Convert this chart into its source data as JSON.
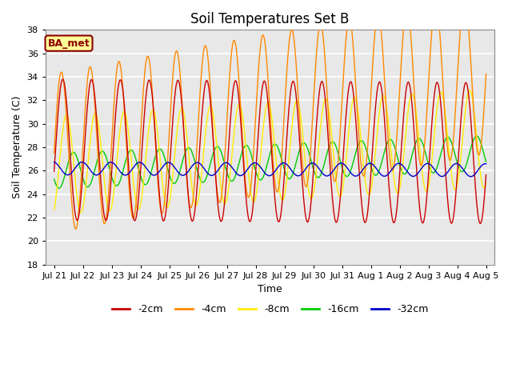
{
  "title": "Soil Temperatures Set B",
  "xlabel": "Time",
  "ylabel": "Soil Temperature (C)",
  "ylim": [
    18,
    38
  ],
  "yticks": [
    18,
    20,
    22,
    24,
    26,
    28,
    30,
    32,
    34,
    36,
    38
  ],
  "line_colors": {
    "-2cm": "#CC0000",
    "-4cm": "#FF8800",
    "-8cm": "#FFEE00",
    "-16cm": "#00CC00",
    "-32cm": "#0000CC"
  },
  "annotation_text": "BA_met",
  "annotation_color": "#8B0000",
  "annotation_bg": "#FFFF99",
  "legend_labels": [
    "-2cm",
    "-4cm",
    "-8cm",
    "-16cm",
    "-32cm"
  ],
  "background_color": "#E8E8E8",
  "time_labels": [
    "Jul 21",
    "Jul 22",
    "Jul 23",
    "Jul 24",
    "Jul 25",
    "Jul 26",
    "Jul 27",
    "Jul 28",
    "Jul 29",
    "Jul 30",
    "Jul 31",
    "Aug 1",
    "Aug 2",
    "Aug 3",
    "Aug 4",
    "Aug 5"
  ]
}
